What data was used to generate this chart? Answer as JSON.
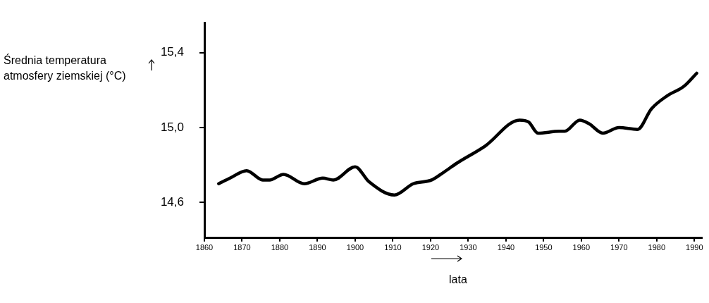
{
  "chart_data": {
    "type": "line",
    "ylabel": "Średnia temperatura atmosfery ziemskiej (°C)",
    "xlabel": "lata",
    "x": [
      1863.8,
      1866.8,
      1871.2,
      1875.5,
      1877.3,
      1881.0,
      1886.5,
      1891.4,
      1894.2,
      1900.0,
      1903.7,
      1910.4,
      1915.4,
      1920.3,
      1923.4,
      1927.0,
      1934.4,
      1943.6,
      1946.0,
      1948.5,
      1954.1,
      1955.6,
      1959.6,
      1962.1,
      1965.7,
      1970.0,
      1974.9,
      1978.6,
      1982.8,
      1987.2,
      1990.6
    ],
    "series": [
      {
        "color": "#000000",
        "values": [
          14.7,
          14.73,
          14.77,
          14.72,
          14.72,
          14.75,
          14.7,
          14.73,
          14.72,
          14.79,
          14.71,
          14.64,
          14.7,
          14.72,
          14.76,
          14.81,
          14.9,
          15.04,
          15.03,
          14.97,
          14.98,
          14.98,
          15.04,
          15.02,
          14.97,
          15.0,
          14.99,
          15.1,
          15.17,
          15.22,
          15.29
        ]
      }
    ],
    "xlim": [
      1860,
      1992
    ],
    "xticks": [
      1860,
      1870,
      1880,
      1890,
      1900,
      1910,
      1920,
      1930,
      1940,
      1950,
      1960,
      1970,
      1980,
      1990
    ],
    "ylim": [
      14.41,
      15.56
    ],
    "yticks": [
      {
        "value": 14.6,
        "label": "14,6"
      },
      {
        "value": 15.0,
        "label": "15,0"
      },
      {
        "value": 15.4,
        "label": "15,4"
      }
    ],
    "grid": false,
    "legend": false,
    "marker": "none",
    "line_style": "solid"
  }
}
